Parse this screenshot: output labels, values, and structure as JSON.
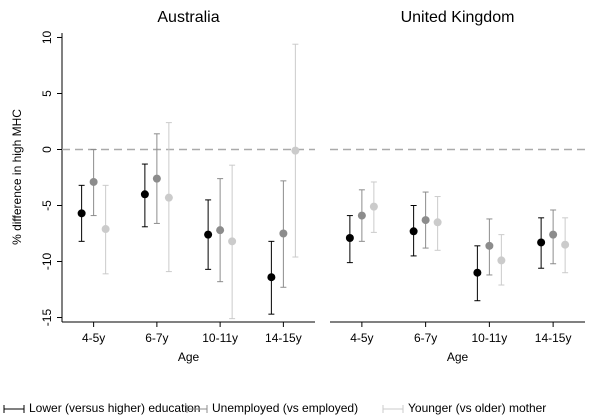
{
  "chart_data": [
    {
      "type": "errorbar",
      "title": "Australia",
      "x_label": "Age",
      "y_label": "% difference in high MHC",
      "categories": [
        "4-5y",
        "6-7y",
        "10-11y",
        "14-15y"
      ],
      "ylim": [
        -15.4,
        10.4
      ],
      "yticks": [
        10,
        5,
        0,
        -5,
        -10,
        -15
      ],
      "hline": 0,
      "series": [
        {
          "name": "Lower (versus higher) education",
          "color": "#000000",
          "values": [
            -5.7,
            -4.0,
            -7.6,
            -11.4
          ],
          "lower": [
            -8.2,
            -6.9,
            -10.7,
            -14.7
          ],
          "upper": [
            -3.2,
            -1.3,
            -4.5,
            -8.2
          ]
        },
        {
          "name": "Unemployed (vs employed)",
          "color": "#8c8c8c",
          "values": [
            -2.9,
            -2.6,
            -7.2,
            -7.5
          ],
          "lower": [
            -5.9,
            -6.6,
            -11.8,
            -12.3
          ],
          "upper": [
            0,
            1.4,
            -2.6,
            -2.8
          ]
        },
        {
          "name": "Younger (vs older) mother",
          "color": "#cbcbcb",
          "values": [
            -7.1,
            -4.3,
            -8.2,
            -0.1
          ],
          "lower": [
            -11.1,
            -10.9,
            -15.1,
            -9.6
          ],
          "upper": [
            -3.2,
            2.4,
            -1.4,
            9.4
          ]
        }
      ]
    },
    {
      "type": "errorbar",
      "title": "United Kingdom",
      "x_label": "Age",
      "categories": [
        "4-5y",
        "6-7y",
        "10-11y",
        "14-15y"
      ],
      "ylim": [
        -15.4,
        10.4
      ],
      "hline": 0,
      "series": [
        {
          "color": "#000000",
          "values": [
            -7.9,
            -7.3,
            -11.0,
            -8.3
          ],
          "lower": [
            -10.1,
            -9.5,
            -13.5,
            -10.6
          ],
          "upper": [
            -5.9,
            -5.0,
            -8.6,
            -6.1
          ]
        },
        {
          "color": "#8c8c8c",
          "values": [
            -5.9,
            -6.3,
            -8.6,
            -7.6
          ],
          "lower": [
            -8.2,
            -8.8,
            -11.2,
            -10.2
          ],
          "upper": [
            -3.6,
            -3.8,
            -6.2,
            -5.4
          ]
        },
        {
          "color": "#cbcbcb",
          "values": [
            -5.1,
            -6.5,
            -9.9,
            -8.5
          ],
          "lower": [
            -7.4,
            -9.0,
            -12.1,
            -11.0
          ],
          "upper": [
            -2.9,
            -4.2,
            -7.6,
            -6.1
          ]
        }
      ]
    }
  ]
}
